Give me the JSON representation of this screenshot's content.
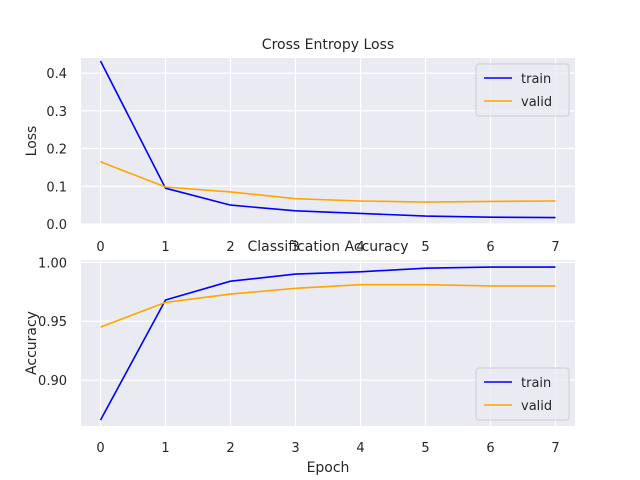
{
  "chart_data": [
    {
      "type": "line",
      "title": "Cross Entropy Loss",
      "xlabel": "",
      "ylabel": "Loss",
      "x": [
        0,
        1,
        2,
        3,
        4,
        5,
        6,
        7
      ],
      "xticks": [
        "0",
        "1",
        "2",
        "3",
        "4",
        "5",
        "6",
        "7"
      ],
      "yticks": [
        "0.0",
        "0.1",
        "0.2",
        "0.3",
        "0.4"
      ],
      "ylim": [
        0,
        0.44
      ],
      "xlim": [
        -0.3,
        7.3
      ],
      "grid": true,
      "legend": "top-right",
      "series": [
        {
          "name": "train",
          "color": "#0000ff",
          "values": [
            0.432,
            0.095,
            0.05,
            0.035,
            0.028,
            0.021,
            0.018,
            0.017
          ]
        },
        {
          "name": "valid",
          "color": "#ffa500",
          "values": [
            0.165,
            0.098,
            0.085,
            0.067,
            0.061,
            0.058,
            0.06,
            0.061
          ]
        }
      ]
    },
    {
      "type": "line",
      "title": "Classification Accuracy",
      "xlabel": "Epoch",
      "ylabel": "Accuracy",
      "x": [
        0,
        1,
        2,
        3,
        4,
        5,
        6,
        7
      ],
      "xticks": [
        "0",
        "1",
        "2",
        "3",
        "4",
        "5",
        "6",
        "7"
      ],
      "yticks": [
        "0.90",
        "0.95",
        "1.00"
      ],
      "ylim": [
        0.861,
        1.002
      ],
      "xlim": [
        -0.3,
        7.3
      ],
      "grid": true,
      "legend": "bottom-right",
      "series": [
        {
          "name": "train",
          "color": "#0000ff",
          "values": [
            0.866,
            0.968,
            0.984,
            0.99,
            0.992,
            0.995,
            0.996,
            0.996
          ]
        },
        {
          "name": "valid",
          "color": "#ffa500",
          "values": [
            0.945,
            0.966,
            0.973,
            0.978,
            0.981,
            0.981,
            0.98,
            0.98
          ]
        }
      ]
    }
  ]
}
